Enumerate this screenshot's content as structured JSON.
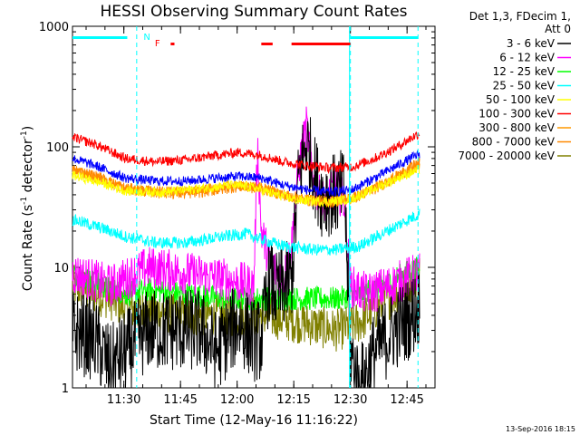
{
  "chart_data": {
    "type": "line",
    "title": "HESSI Observing Summary Count Rates",
    "xlabel": "Start Time (12-May-16 11:16:22)",
    "ylabel_main": "Count Rate (s",
    "ylabel_sup1": "-1",
    "ylabel_mid": " detector",
    "ylabel_sup2": "-1",
    "ylabel_end": ")",
    "yscale": "log",
    "ylim": [
      1,
      1000
    ],
    "xlim_minutes": [
      0,
      96
    ],
    "x_ticks": [
      {
        "label": "11:30",
        "min": 13.6
      },
      {
        "label": "11:45",
        "min": 28.6
      },
      {
        "label": "12:00",
        "min": 43.6
      },
      {
        "label": "12:15",
        "min": 58.6
      },
      {
        "label": "12:30",
        "min": 73.6
      },
      {
        "label": "12:45",
        "min": 88.6
      }
    ],
    "y_ticks": [
      {
        "label": "1",
        "value": 1
      },
      {
        "label": "10",
        "value": 10
      },
      {
        "label": "100",
        "value": 100
      },
      {
        "label": "1000",
        "value": 1000
      }
    ],
    "legend_header": [
      "Det 1,3, FDecim 1,",
      "Att 0"
    ],
    "legend_position": "right",
    "series": [
      {
        "name": "3 - 6 keV",
        "color": "#000000",
        "base": [
          [
            0,
            3
          ],
          [
            6,
            2.5
          ],
          [
            10,
            1.5
          ],
          [
            14,
            2
          ],
          [
            20,
            3
          ],
          [
            34,
            3
          ],
          [
            38,
            2
          ],
          [
            44,
            3.5
          ],
          [
            48,
            2.5
          ],
          [
            50,
            2.5
          ],
          [
            52,
            8
          ],
          [
            54,
            6
          ],
          [
            56,
            7
          ],
          [
            58,
            8
          ],
          [
            60,
            60
          ],
          [
            62,
            110
          ],
          [
            64,
            60
          ],
          [
            66,
            40
          ],
          [
            68,
            40
          ],
          [
            70,
            40
          ],
          [
            72,
            45
          ],
          [
            73.6,
            2
          ],
          [
            76,
            1
          ],
          [
            80,
            2
          ],
          [
            85,
            3
          ],
          [
            90,
            4
          ],
          [
            92,
            5
          ]
        ],
        "noise": 0.35
      },
      {
        "name": "6 - 12 keV",
        "color": "#ff00ff",
        "base": [
          [
            0,
            9
          ],
          [
            10,
            7
          ],
          [
            14,
            8
          ],
          [
            20,
            10
          ],
          [
            30,
            9
          ],
          [
            40,
            8
          ],
          [
            48,
            7
          ],
          [
            49,
            100
          ],
          [
            50,
            20
          ],
          [
            52,
            12
          ],
          [
            54,
            9
          ],
          [
            56,
            8
          ],
          [
            58,
            15
          ],
          [
            60,
            70
          ],
          [
            62,
            150
          ],
          [
            64,
            50
          ],
          [
            66,
            35
          ],
          [
            68,
            40
          ],
          [
            70,
            45
          ],
          [
            72,
            35
          ],
          [
            73.6,
            7
          ],
          [
            78,
            6
          ],
          [
            84,
            7
          ],
          [
            88,
            8
          ],
          [
            92,
            9
          ]
        ],
        "noise": 0.18
      },
      {
        "name": "12 - 25 keV",
        "color": "#00ff00",
        "base": [
          [
            0,
            9
          ],
          [
            8,
            7
          ],
          [
            14,
            6
          ],
          [
            20,
            6.5
          ],
          [
            30,
            6
          ],
          [
            40,
            5.5
          ],
          [
            50,
            5.5
          ],
          [
            60,
            5.5
          ],
          [
            70,
            5.5
          ],
          [
            76,
            6
          ],
          [
            82,
            7
          ],
          [
            88,
            9
          ],
          [
            92,
            10
          ]
        ],
        "noise": 0.1
      },
      {
        "name": "25 - 50 keV",
        "color": "#00ffff",
        "base": [
          [
            0,
            25
          ],
          [
            8,
            21
          ],
          [
            14,
            18
          ],
          [
            22,
            16
          ],
          [
            30,
            16
          ],
          [
            40,
            18
          ],
          [
            46,
            19
          ],
          [
            50,
            17
          ],
          [
            56,
            15
          ],
          [
            64,
            14
          ],
          [
            70,
            14
          ],
          [
            76,
            15
          ],
          [
            82,
            19
          ],
          [
            88,
            24
          ],
          [
            92,
            28
          ]
        ],
        "noise": 0.05
      },
      {
        "name": "50 - 100 keV",
        "color": "#ffff00",
        "base": [
          [
            0,
            58
          ],
          [
            8,
            50
          ],
          [
            14,
            43
          ],
          [
            24,
            42
          ],
          [
            34,
            45
          ],
          [
            42,
            48
          ],
          [
            48,
            46
          ],
          [
            54,
            40
          ],
          [
            60,
            36
          ],
          [
            68,
            35
          ],
          [
            74,
            37
          ],
          [
            80,
            45
          ],
          [
            86,
            55
          ],
          [
            92,
            65
          ]
        ],
        "noise": 0.04
      },
      {
        "name": "100 - 300 keV",
        "color": "#ff0000",
        "base": [
          [
            0,
            120
          ],
          [
            6,
            105
          ],
          [
            14,
            80
          ],
          [
            22,
            75
          ],
          [
            30,
            78
          ],
          [
            38,
            85
          ],
          [
            44,
            90
          ],
          [
            50,
            85
          ],
          [
            56,
            75
          ],
          [
            62,
            70
          ],
          [
            68,
            67
          ],
          [
            74,
            68
          ],
          [
            80,
            80
          ],
          [
            86,
            100
          ],
          [
            90,
            120
          ],
          [
            92,
            130
          ]
        ],
        "noise": 0.04
      },
      {
        "name": "300 - 800 keV",
        "color": "#ff9900",
        "base": [
          [
            0,
            65
          ],
          [
            6,
            57
          ],
          [
            14,
            45
          ],
          [
            22,
            43
          ],
          [
            30,
            43
          ],
          [
            38,
            46
          ],
          [
            44,
            48
          ],
          [
            50,
            46
          ],
          [
            56,
            40
          ],
          [
            62,
            37
          ],
          [
            68,
            36
          ],
          [
            74,
            38
          ],
          [
            80,
            45
          ],
          [
            86,
            57
          ],
          [
            92,
            70
          ]
        ],
        "noise": 0.04
      },
      {
        "name": "800 - 7000 keV",
        "color": "#ff8800",
        "base": [
          [
            0,
            65
          ],
          [
            6,
            57
          ],
          [
            14,
            45
          ],
          [
            22,
            42
          ],
          [
            30,
            41
          ],
          [
            38,
            44
          ],
          [
            44,
            47
          ],
          [
            50,
            45
          ],
          [
            56,
            40
          ],
          [
            62,
            36
          ],
          [
            68,
            35
          ],
          [
            74,
            37
          ],
          [
            80,
            45
          ],
          [
            86,
            57
          ],
          [
            92,
            75
          ]
        ],
        "noise": 0.05
      },
      {
        "name": "7000 - 20000 keV",
        "color": "#808000",
        "base": [
          [
            0,
            7
          ],
          [
            10,
            5.5
          ],
          [
            14,
            4.5
          ],
          [
            20,
            4.5
          ],
          [
            30,
            4
          ],
          [
            40,
            4
          ],
          [
            50,
            4
          ],
          [
            60,
            3.5
          ],
          [
            70,
            3
          ],
          [
            76,
            3.5
          ],
          [
            82,
            5
          ],
          [
            88,
            7
          ],
          [
            92,
            9
          ]
        ],
        "noise": 0.18
      }
    ],
    "blue_series": {
      "name": "",
      "color": "#0000ff",
      "base": [
        [
          0,
          80
        ],
        [
          6,
          70
        ],
        [
          14,
          55
        ],
        [
          22,
          52
        ],
        [
          30,
          52
        ],
        [
          38,
          55
        ],
        [
          44,
          57
        ],
        [
          50,
          55
        ],
        [
          56,
          48
        ],
        [
          62,
          44
        ],
        [
          68,
          42
        ],
        [
          74,
          44
        ],
        [
          80,
          55
        ],
        [
          86,
          70
        ],
        [
          92,
          88
        ]
      ],
      "noise": 0.04
    },
    "markers": {
      "N_label": "N",
      "F_label": "F",
      "cyan_bars": [
        [
          0,
          14.5
        ],
        [
          73.6,
          91.5
        ]
      ],
      "red_bars": [
        [
          26,
          27
        ],
        [
          50,
          53
        ],
        [
          58,
          73.6
        ]
      ],
      "vlines_min": [
        17,
        73.6,
        91.5
      ]
    }
  },
  "footer_timestamp": "13-Sep-2016 18:15"
}
